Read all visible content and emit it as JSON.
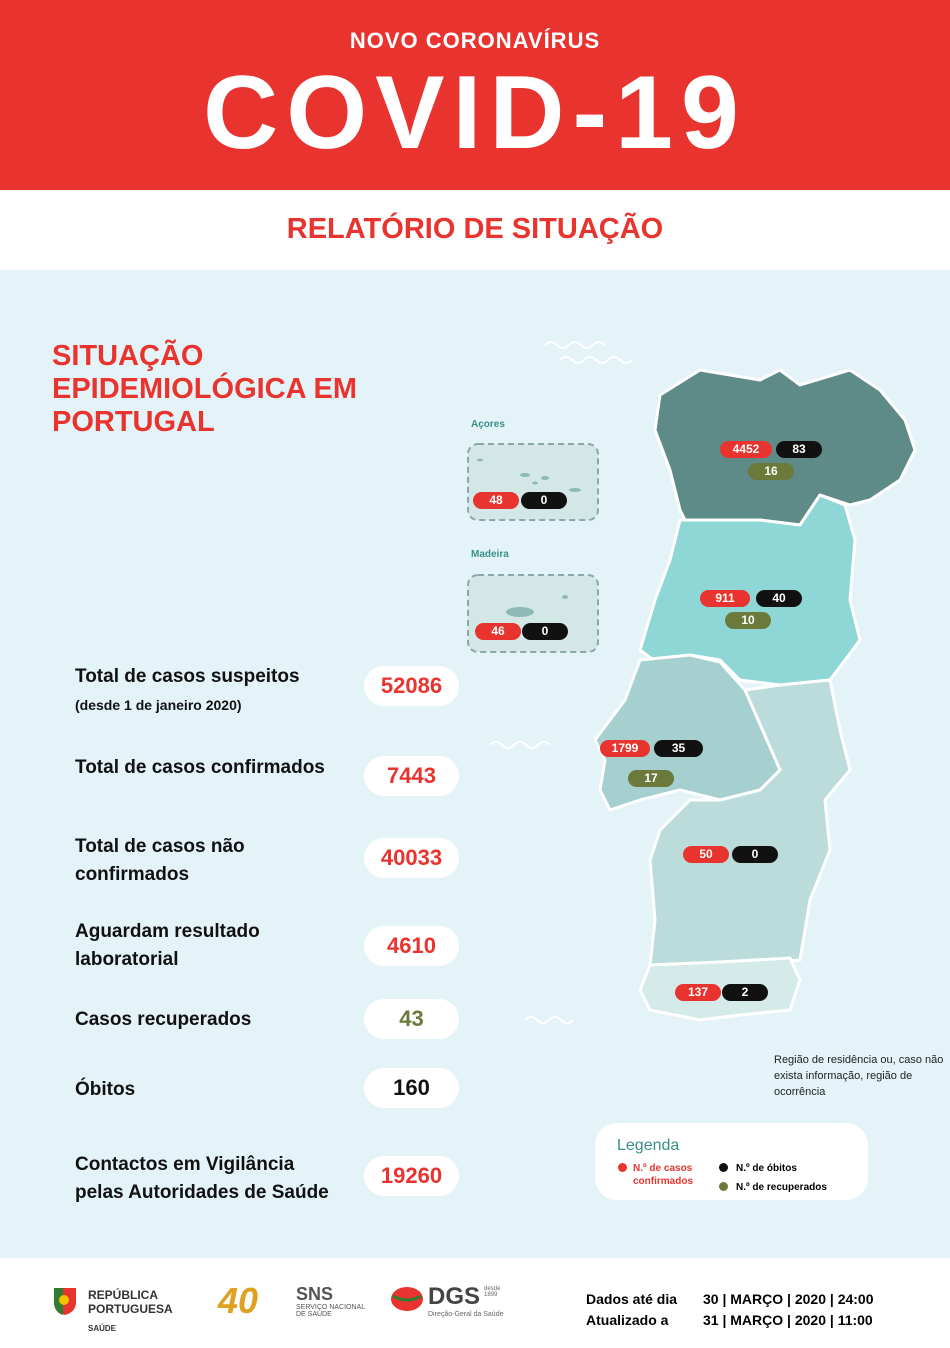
{
  "header": {
    "kicker": "NOVO CORONAVÍRUS",
    "title": "COVID-19",
    "subtitle": "RELATÓRIO DE SITUAÇÃO"
  },
  "section_title": "SITUAÇÃO EPIDEMIOLÓGICA EM PORTUGAL",
  "stats": [
    {
      "label": "Total de casos suspeitos",
      "note": "(desde 1 de janeiro 2020)",
      "value": 52086,
      "color": "#e8332e"
    },
    {
      "label": "Total de casos confirmados",
      "value": 7443,
      "color": "#e8332e"
    },
    {
      "label": "Total de casos não confirmados",
      "value": 40033,
      "color": "#e8332e"
    },
    {
      "label": "Aguardam resultado laboratorial",
      "value": 4610,
      "color": "#e8332e"
    },
    {
      "label": "Casos recuperados",
      "value": 43,
      "color": "#6b7a3a"
    },
    {
      "label": "Óbitos",
      "value": 160,
      "color": "#111111"
    },
    {
      "label": "Contactos em Vigilância pelas Autoridades de Saúde",
      "value": 19260,
      "color": "#e8332e"
    }
  ],
  "map": {
    "islands": [
      {
        "name": "Açores",
        "confirmed": 48,
        "deaths": 0
      },
      {
        "name": "Madeira",
        "confirmed": 46,
        "deaths": 0
      }
    ],
    "regions": [
      {
        "confirmed": 4452,
        "deaths": 83,
        "recovered": 16
      },
      {
        "confirmed": 911,
        "deaths": 40,
        "recovered": 10
      },
      {
        "confirmed": 1799,
        "deaths": 35,
        "recovered": 17
      },
      {
        "confirmed": 50,
        "deaths": 0
      },
      {
        "confirmed": 137,
        "deaths": 2
      }
    ],
    "note": "Região de residência ou, caso não exista informação, região de ocorrência"
  },
  "legend": {
    "title": "Legenda",
    "confirmed": "N.º de casos confirmados",
    "deaths": "N.º de óbitos",
    "recovered": "N.º de recuperados"
  },
  "footer": {
    "logos": {
      "republica": "REPÚBLICA PORTUGUESA",
      "saude": "SAÚDE",
      "anos": "40",
      "sns": "SNS",
      "sns_name": "SERVIÇO NACIONAL DE SAÚDE",
      "dgs": "DGS",
      "dgs_since": "desde 1899",
      "dgs_name": "Direção-Geral da Saúde"
    },
    "dates": [
      {
        "label": "Dados até dia",
        "value": "30 | MARÇO | 2020 | 24:00"
      },
      {
        "label": "Atualizado a",
        "value": "31 | MARÇO | 2020 | 11:00"
      }
    ]
  }
}
